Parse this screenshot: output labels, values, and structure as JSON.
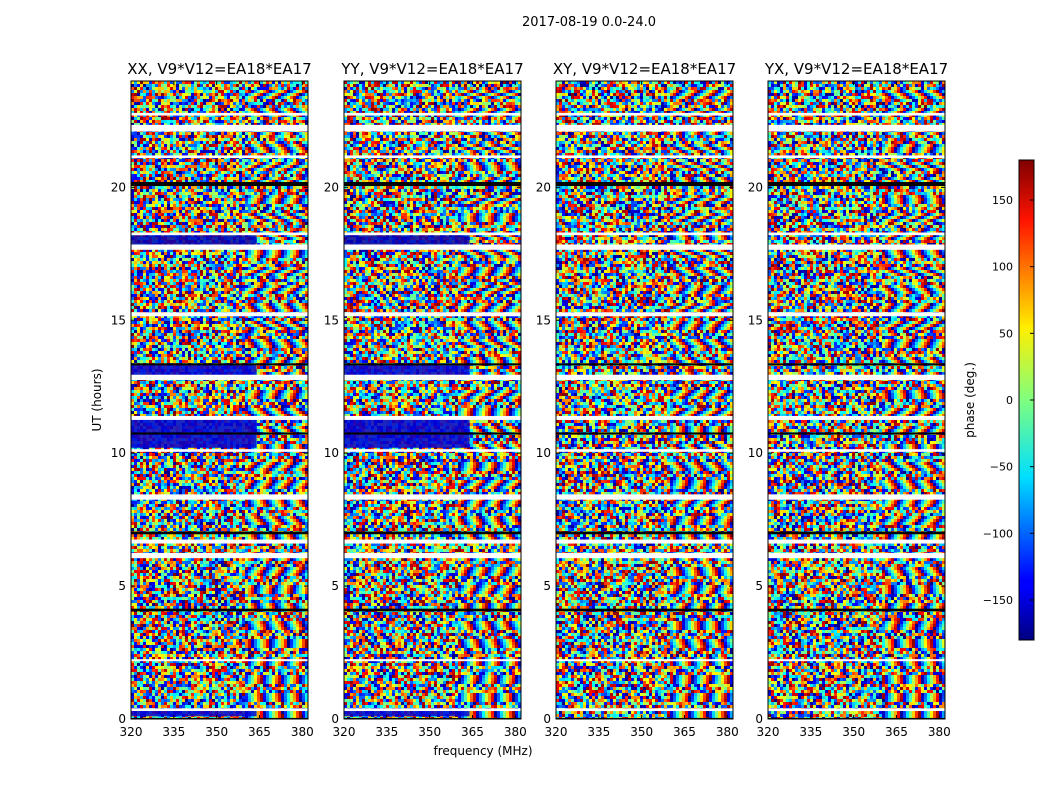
{
  "chart_data": {
    "type": "heatmap",
    "suptitle": "2017-08-19 0.0-24.0",
    "xlabel": "frequency (MHz)",
    "ylabel": "UT (hours)",
    "xlim": [
      320,
      382
    ],
    "ylim": [
      0,
      24
    ],
    "xticks": [
      320,
      335,
      350,
      365,
      380
    ],
    "yticks": [
      0,
      5,
      10,
      15,
      20
    ],
    "panels": [
      {
        "title": "XX, V9*V12=EA18*EA17",
        "pol": "XX"
      },
      {
        "title": "YY, V9*V12=EA18*EA17",
        "pol": "YY"
      },
      {
        "title": "XY, V9*V12=EA18*EA17",
        "pol": "XY"
      },
      {
        "title": "YX, V9*V12=EA18*EA17",
        "pol": "YX"
      }
    ],
    "colorbar": {
      "label": "phase (deg.)",
      "range": [
        -180,
        180
      ],
      "ticks": [
        -150,
        -100,
        -50,
        0,
        50,
        100,
        150
      ],
      "tick_labels": [
        "−150",
        "−100",
        "−50",
        "0",
        "50",
        "100",
        "150"
      ],
      "colormap": "jet"
    },
    "flagged_ut_gaps": [
      [
        0.3,
        0.4
      ],
      [
        2.2,
        2.25
      ],
      [
        6.05,
        6.25
      ],
      [
        6.6,
        6.75
      ],
      [
        8.25,
        8.45
      ],
      [
        10.05,
        10.15
      ],
      [
        11.25,
        11.4
      ],
      [
        12.75,
        12.95
      ],
      [
        15.15,
        15.3
      ],
      [
        17.65,
        17.85
      ],
      [
        18.2,
        18.3
      ],
      [
        21.1,
        21.2
      ],
      [
        22.1,
        22.35
      ],
      [
        22.7,
        22.8
      ]
    ],
    "flagged_ut_black": [
      [
        0.0,
        0.04
      ],
      [
        4.05,
        4.15
      ],
      [
        6.95,
        7.05
      ],
      [
        10.7,
        10.78
      ],
      [
        13.3,
        13.38
      ],
      [
        20.05,
        20.2
      ]
    ],
    "phase_wrap_regions": [
      {
        "panels": [
          "XX",
          "YY"
        ],
        "ut": [
          0.1,
          0.4
        ],
        "freq": [
          320,
          364
        ],
        "phase_deg": -150
      },
      {
        "panels": [
          "XX",
          "YY"
        ],
        "ut": [
          10.2,
          11.4
        ],
        "freq": [
          320,
          364
        ],
        "phase_deg": -150
      },
      {
        "panels": [
          "XX",
          "YY"
        ],
        "ut": [
          12.9,
          13.3
        ],
        "freq": [
          320,
          364
        ],
        "phase_deg": -150
      },
      {
        "panels": [
          "XX",
          "YY"
        ],
        "ut": [
          17.85,
          18.2
        ],
        "freq": [
          320,
          364
        ],
        "phase_deg": -160
      }
    ]
  }
}
